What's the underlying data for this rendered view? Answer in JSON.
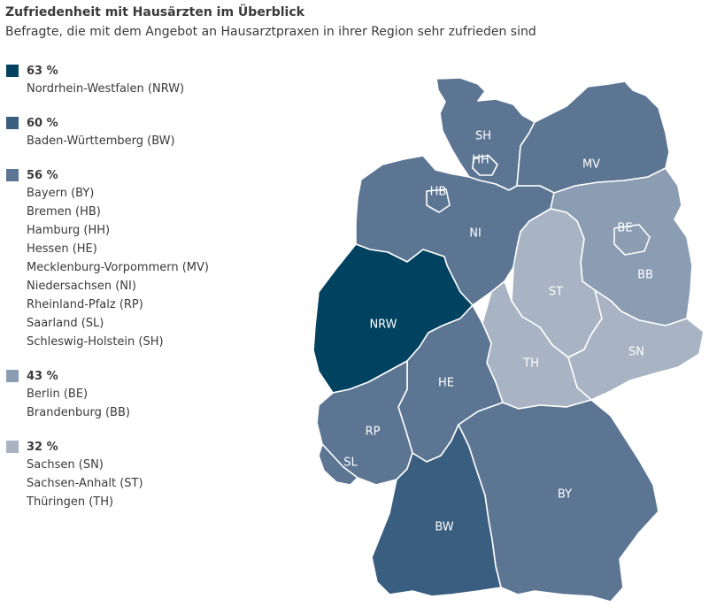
{
  "title": "Zufriedenheit mit Hausärzten im Überblick",
  "subtitle": "Befragte, die mit dem Angebot an Hausarztpraxen in ihrer Region sehr zufrieden sind",
  "colors": {
    "c63": "#00425f",
    "c60": "#3a5e80",
    "c56": "#5b7593",
    "c43": "#8b9db3",
    "c32": "#a8b3c3"
  },
  "legend": [
    {
      "pct": "63 %",
      "color": "#00425f",
      "items": [
        "Nordrhein-Westfalen (NRW)"
      ]
    },
    {
      "pct": "60 %",
      "color": "#3a5e80",
      "items": [
        "Baden-Württemberg (BW)"
      ]
    },
    {
      "pct": "56 %",
      "color": "#5b7593",
      "items": [
        "Bayern (BY)",
        "Bremen (HB)",
        "Hamburg (HH)",
        "Hessen (HE)",
        "Mecklenburg-Vorpommern (MV)",
        "Niedersachsen (NI)",
        "Rheinland-Pfalz (RP)",
        "Saarland (SL)",
        "Schleswig-Holstein (SH)"
      ]
    },
    {
      "pct": "43 %",
      "color": "#8b9db3",
      "items": [
        "Berlin (BE)",
        "Brandenburg (BB)"
      ]
    },
    {
      "pct": "32 %",
      "color": "#a8b3c3",
      "items": [
        "Sachsen (SN)",
        "Sachsen-Anhalt (ST)",
        "Thüringen (TH)"
      ]
    }
  ],
  "map": {
    "states": [
      {
        "code": "SH",
        "value": 56,
        "color": "#5b7593"
      },
      {
        "code": "HH",
        "value": 56,
        "color": "#5b7593"
      },
      {
        "code": "MV",
        "value": 56,
        "color": "#5b7593"
      },
      {
        "code": "HB",
        "value": 56,
        "color": "#5b7593"
      },
      {
        "code": "NI",
        "value": 56,
        "color": "#5b7593"
      },
      {
        "code": "BE",
        "value": 43,
        "color": "#8b9db3"
      },
      {
        "code": "BB",
        "value": 43,
        "color": "#8b9db3"
      },
      {
        "code": "ST",
        "value": 32,
        "color": "#a8b3c3"
      },
      {
        "code": "NRW",
        "value": 63,
        "color": "#00425f"
      },
      {
        "code": "SN",
        "value": 32,
        "color": "#a8b3c3"
      },
      {
        "code": "TH",
        "value": 32,
        "color": "#a8b3c3"
      },
      {
        "code": "HE",
        "value": 56,
        "color": "#5b7593"
      },
      {
        "code": "RP",
        "value": 56,
        "color": "#5b7593"
      },
      {
        "code": "SL",
        "value": 56,
        "color": "#5b7593"
      },
      {
        "code": "BY",
        "value": 56,
        "color": "#5b7593"
      },
      {
        "code": "BW",
        "value": 60,
        "color": "#3a5e80"
      }
    ]
  }
}
